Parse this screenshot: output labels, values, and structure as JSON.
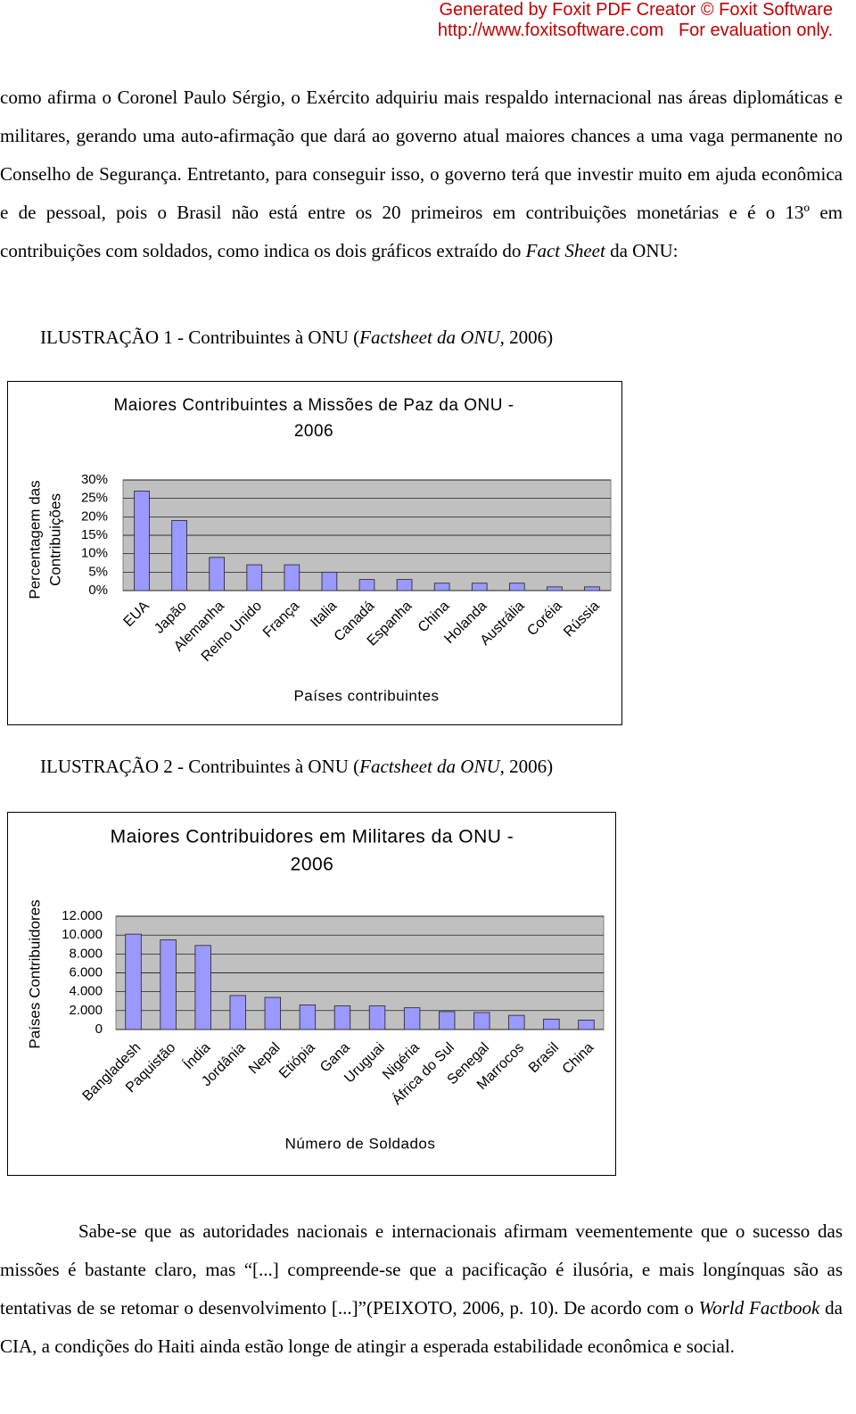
{
  "header": {
    "line1": "Generated by Foxit PDF Creator © Foxit Software",
    "url": "http://www.foxitsoftware.com",
    "note": "For evaluation only."
  },
  "paragraphs": [
    {
      "runs": [
        {
          "text": "como afirma o Coronel Paulo Sérgio, o Exército adquiriu mais respaldo internacional nas áreas diplomáticas e militares, gerando uma auto-afirmação que dará ao governo atual maiores chances a uma vaga permanente no Conselho de Segurança. Entretanto, para conseguir isso, o governo terá que investir muito em ajuda econômica e de pessoal, pois o Brasil não está entre os 20 primeiros em contribuições monetárias e é o 13º em contribuições com soldados, como indica os dois gráficos extraído do ",
          "italic": false
        },
        {
          "text": "Fact Sheet",
          "italic": true
        },
        {
          "text": " da ONU:",
          "italic": false
        }
      ]
    },
    {
      "runs": [
        {
          "text": "Sabe-se que as autoridades nacionais e internacionais afirmam veementemente que o sucesso das missões é bastante claro, mas “[...] compreende-se que a pacificação é ilusória, e mais longínquas são as tentativas de se retomar o desenvolvimento [...]”(PEIXOTO, 2006, p. 10). De acordo com o ",
          "italic": false
        },
        {
          "text": "World Factbook",
          "italic": true
        },
        {
          "text": " da CIA, a condições do Haiti ainda estão longe de atingir a esperada estabilidade econômica e social.",
          "italic": false
        }
      ]
    }
  ],
  "captions": [
    {
      "runs": [
        {
          "text": "ILUSTRAÇÃO 1 - Contribuintes à ONU (",
          "italic": false
        },
        {
          "text": "Factsheet da ONU",
          "italic": true
        },
        {
          "text": ", 2006)",
          "italic": false
        }
      ]
    },
    {
      "runs": [
        {
          "text": "ILUSTRAÇÃO 2 - Contribuintes à ONU (",
          "italic": false
        },
        {
          "text": "Factsheet da ONU",
          "italic": true
        },
        {
          "text": ", 2006)",
          "italic": false
        }
      ]
    }
  ],
  "chart_data": [
    {
      "type": "bar",
      "title": [
        "Maiores Contribuintes a Missões de Paz da ONU -",
        "2006"
      ],
      "xlabel": "Países contribuintes",
      "ylabel": [
        "Percentagem das",
        "Contribuições"
      ],
      "categories": [
        "EUA",
        "Japão",
        "Alemanha",
        "Reino Unido",
        "França",
        "Italia",
        "Canadá",
        "Espanha",
        "China",
        "Holanda",
        "Austrália",
        "Coréia",
        "Rússia"
      ],
      "values": [
        27,
        19,
        9,
        7,
        7,
        5,
        3,
        3,
        2,
        2,
        2,
        1,
        1
      ],
      "color": "#9999ff",
      "ylim": [
        0,
        30
      ],
      "yticks": [
        {
          "value": 0,
          "label": "0%"
        },
        {
          "value": 5,
          "label": "5%"
        },
        {
          "value": 10,
          "label": "10%"
        },
        {
          "value": 15,
          "label": "15%"
        },
        {
          "value": 20,
          "label": "20%"
        },
        {
          "value": 25,
          "label": "25%"
        },
        {
          "value": 30,
          "label": "30%"
        }
      ],
      "grid": true
    },
    {
      "type": "bar",
      "title": [
        "Maiores Contribuidores em Militares da ONU -",
        "2006"
      ],
      "xlabel": "Número de Soldados",
      "ylabel": [
        "Países Contribuidores"
      ],
      "categories": [
        "Bangladesh",
        "Paquistão",
        "Índia",
        "Jordânia",
        "Nepal",
        "Etiópia",
        "Gana",
        "Uruguai",
        "Nigéria",
        "África do Sul",
        "Senegal",
        "Marrocos",
        "Brasil",
        "China"
      ],
      "values": [
        10100,
        9500,
        8900,
        3600,
        3400,
        2600,
        2500,
        2500,
        2300,
        1900,
        1800,
        1500,
        1100,
        1000
      ],
      "color": "#9999ff",
      "ylim": [
        0,
        12000
      ],
      "yticks": [
        0,
        {
          "value": 2000,
          "label": "2.000"
        },
        {
          "value": 4000,
          "label": "4.000"
        },
        {
          "value": 6000,
          "label": "6.000"
        },
        {
          "value": 8000,
          "label": "8.000"
        },
        {
          "value": 10000,
          "label": "10.000"
        },
        {
          "value": 12000,
          "label": "12.000"
        }
      ],
      "grid": true
    }
  ]
}
